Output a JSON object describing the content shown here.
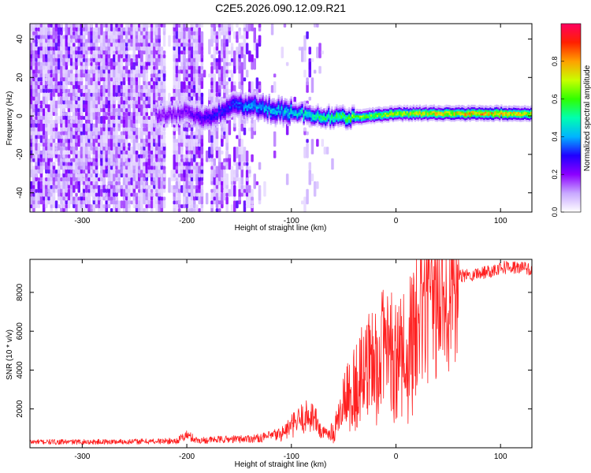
{
  "title": "C2E5.2026.090.12.09.R21",
  "chart_data": [
    {
      "type": "heatmap",
      "xlabel": "Height of straight line (km)",
      "ylabel": "Frequency (Hz)",
      "xlim": [
        -350,
        130
      ],
      "ylim": [
        -50,
        48
      ],
      "xticks": [
        -300,
        -200,
        -100,
        0,
        100
      ],
      "xtick_labels": [
        "-300",
        "-200",
        "-100",
        "0",
        "100"
      ],
      "yticks": [
        -40,
        -20,
        0,
        20,
        40
      ],
      "ytick_labels": [
        "-40",
        "-20",
        "0",
        "20",
        "40"
      ],
      "colorbar": {
        "label": "Normalized spectral amplitude",
        "range": [
          0,
          1
        ],
        "ticks": [
          0.0,
          0.2,
          0.4,
          0.6,
          0.8
        ],
        "tick_labels": [
          "0.0",
          "0.2",
          "0.4",
          "0.6",
          "0.8"
        ],
        "colors": [
          "#ffffff",
          "#c8a8ff",
          "#8c00ff",
          "#2000ff",
          "#00b4ff",
          "#00ffb0",
          "#30ff00",
          "#c8ff00",
          "#ffa000",
          "#ff2000",
          "#ff0060"
        ]
      },
      "ridge": {
        "x": [
          -220,
          -200,
          -180,
          -160,
          -140,
          -120,
          -100,
          -80,
          -60,
          -40,
          -20,
          0,
          20,
          50,
          80,
          100,
          130
        ],
        "frequency_hz": [
          0,
          2,
          -2,
          5,
          5,
          3,
          2,
          0,
          -1,
          -1,
          0,
          1,
          1,
          1,
          1,
          1,
          1
        ],
        "amplitude": [
          0.2,
          0.22,
          0.28,
          0.32,
          0.38,
          0.42,
          0.45,
          0.5,
          0.55,
          0.62,
          0.68,
          0.7,
          0.72,
          0.75,
          0.78,
          0.78,
          0.72
        ]
      }
    },
    {
      "type": "line",
      "xlabel": "Height of straight line (km)",
      "ylabel": "SNR (10 * v/v)",
      "xlim": [
        -350,
        130
      ],
      "ylim": [
        0,
        9700
      ],
      "xticks": [
        -300,
        -200,
        -100,
        0,
        100
      ],
      "xtick_labels": [
        "-300",
        "-200",
        "-100",
        "0",
        "100"
      ],
      "yticks": [
        2000,
        4000,
        6000,
        8000
      ],
      "ytick_labels": [
        "2000",
        "4000",
        "6000",
        "8000"
      ],
      "line_color": "#ff2020",
      "series": [
        {
          "name": "SNR",
          "x": [
            -350,
            -300,
            -250,
            -210,
            -200,
            -190,
            -170,
            -150,
            -130,
            -110,
            -100,
            -90,
            -80,
            -70,
            -60,
            -50,
            -40,
            -30,
            -20,
            -10,
            0,
            10,
            20,
            30,
            40,
            50,
            60,
            70,
            80,
            90,
            100,
            110,
            120,
            130
          ],
          "values": [
            300,
            300,
            320,
            350,
            650,
            380,
            420,
            450,
            500,
            700,
            1100,
            1500,
            1700,
            700,
            900,
            2500,
            3400,
            4300,
            4800,
            5700,
            5200,
            6000,
            6500,
            7200,
            7700,
            8500,
            8800,
            8900,
            9000,
            9100,
            9300,
            9300,
            9250,
            9200
          ]
        }
      ]
    }
  ]
}
